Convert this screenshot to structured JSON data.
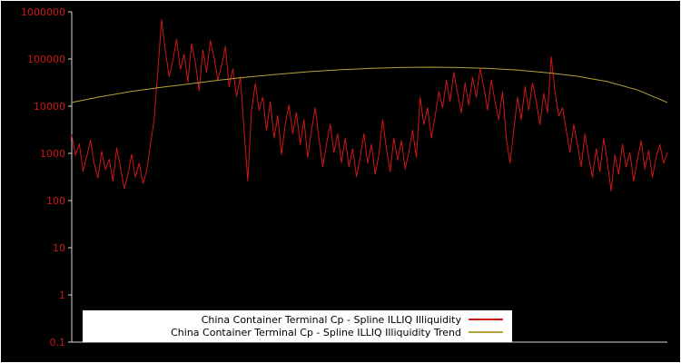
{
  "figure": {
    "background": "#000000",
    "border_color": "#ffffff"
  },
  "axes": {
    "axis_color": "#d9d9d9",
    "tick_label_color": "#cf1717",
    "y_tick_labels": [
      "1000000",
      "100000",
      "10000",
      "1000",
      "100",
      "10",
      "1",
      "0.1"
    ]
  },
  "legend": {
    "background": "#ffffff",
    "text_color": "#000000",
    "entries": [
      {
        "label": "China Container Terminal Cp - Spline ILLIQ Illiquidity",
        "color": "#cf1717"
      },
      {
        "label": "China Container Terminal Cp - Spline ILLIQ Illiquidity Trend",
        "color": "#b5a23c"
      }
    ]
  },
  "chart_data": {
    "type": "line",
    "title": "",
    "xlabel": "",
    "ylabel": "",
    "y_scale": "log",
    "ylim": [
      0.1,
      1000000
    ],
    "y_ticks": [
      1000000,
      100000,
      10000,
      1000,
      100,
      10,
      1,
      0.1
    ],
    "grid": false,
    "legend_position": "bottom-center",
    "series": [
      {
        "name": "China Container Terminal Cp - Spline ILLIQ Illiquidity",
        "color": "#cf1717",
        "values": [
          2500,
          900,
          1600,
          420,
          850,
          1900,
          600,
          300,
          1100,
          450,
          750,
          260,
          1300,
          520,
          180,
          360,
          950,
          310,
          620,
          230,
          430,
          1500,
          5200,
          60000,
          680000,
          150000,
          42000,
          95000,
          260000,
          60000,
          125000,
          32000,
          210000,
          85000,
          21000,
          155000,
          52000,
          245000,
          105000,
          36000,
          72000,
          185000,
          26000,
          62000,
          16000,
          42000,
          3200,
          260,
          8200,
          30000,
          8200,
          15500,
          3100,
          12500,
          2100,
          6300,
          950,
          4200,
          10500,
          2600,
          7400,
          1550,
          5200,
          820,
          3100,
          9200,
          2050,
          520,
          1600,
          4100,
          1050,
          2600,
          640,
          2100,
          520,
          1250,
          320,
          830,
          2600,
          620,
          1550,
          360,
          950,
          5200,
          1250,
          410,
          2100,
          720,
          1850,
          470,
          1050,
          3100,
          830,
          15500,
          4100,
          9300,
          2100,
          6200,
          20500,
          9300,
          36000,
          12500,
          52000,
          18500,
          7200,
          31000,
          10500,
          41000,
          15500,
          62000,
          26000,
          8300,
          36000,
          12500,
          5200,
          20500,
          2100,
          620,
          3100,
          15500,
          5200,
          26000,
          8300,
          31000,
          12500,
          4100,
          18500,
          7200,
          110000,
          20500,
          6200,
          9300,
          3100,
          1050,
          4100,
          1550,
          520,
          2600,
          830,
          310,
          1250,
          410,
          2100,
          620,
          160,
          930,
          360,
          1550,
          520,
          1050,
          260,
          720,
          1850,
          470,
          1150,
          310,
          830,
          1550,
          620,
          1050
        ]
      },
      {
        "name": "China Container Terminal Cp - Spline ILLIQ Illiquidity Trend",
        "color": "#b5a23c",
        "values": [
          12000,
          16000,
          20500,
          25000,
          30000,
          36000,
          42000,
          48000,
          54000,
          59000,
          63000,
          66000,
          67000,
          66000,
          63000,
          58000,
          51000,
          43000,
          33000,
          22000,
          12000
        ]
      }
    ]
  }
}
